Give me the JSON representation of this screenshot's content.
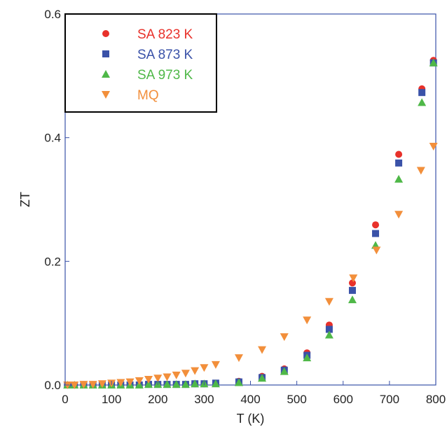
{
  "chart_data": {
    "type": "scatter",
    "xlabel": "T (K)",
    "ylabel": "ZT",
    "xlim": [
      0,
      800
    ],
    "ylim": [
      0,
      0.6
    ],
    "xticks": [
      0,
      100,
      200,
      300,
      400,
      500,
      600,
      700,
      800
    ],
    "yticks": [
      0.0,
      0.2,
      0.4,
      0.6
    ],
    "xtick_labels": [
      "0",
      "100",
      "200",
      "300",
      "400",
      "500",
      "600",
      "700",
      "800"
    ],
    "ytick_labels": [
      "0.0",
      "0.2",
      "0.4",
      "0.6"
    ],
    "grid": false,
    "legend_position": "top-left",
    "series": [
      {
        "name": "SA 823 K",
        "marker": "circle",
        "color": "#e8312a",
        "x": [
          5,
          20,
          40,
          60,
          80,
          100,
          120,
          140,
          160,
          180,
          200,
          220,
          240,
          260,
          280,
          300,
          325,
          375,
          425,
          473,
          522,
          570,
          620,
          670,
          720,
          770,
          795
        ],
        "y": [
          0.0,
          0.0,
          0.0,
          0.0,
          0.0,
          0.0,
          0.0,
          0.0,
          0.0,
          0.001,
          0.001,
          0.001,
          0.001,
          0.001,
          0.002,
          0.002,
          0.003,
          0.006,
          0.014,
          0.026,
          0.052,
          0.097,
          0.165,
          0.259,
          0.373,
          0.479,
          0.525
        ]
      },
      {
        "name": "SA 873 K",
        "marker": "square",
        "color": "#3a52a8",
        "x": [
          5,
          20,
          40,
          60,
          80,
          100,
          120,
          140,
          160,
          180,
          200,
          220,
          240,
          260,
          280,
          300,
          325,
          375,
          425,
          473,
          522,
          570,
          620,
          670,
          720,
          770,
          795
        ],
        "y": [
          0.0,
          0.0,
          0.0,
          0.0,
          0.0,
          0.0,
          0.0,
          0.0,
          0.0,
          0.001,
          0.001,
          0.001,
          0.001,
          0.001,
          0.002,
          0.002,
          0.003,
          0.005,
          0.012,
          0.024,
          0.048,
          0.09,
          0.153,
          0.245,
          0.359,
          0.473,
          0.521
        ]
      },
      {
        "name": "SA 973 K",
        "marker": "triangle-up",
        "color": "#4fb848",
        "x": [
          5,
          20,
          40,
          60,
          80,
          100,
          120,
          140,
          160,
          180,
          200,
          220,
          240,
          260,
          280,
          300,
          325,
          375,
          425,
          473,
          522,
          570,
          620,
          670,
          720,
          770,
          795
        ],
        "y": [
          0.0,
          0.0,
          0.0,
          0.0,
          0.0,
          0.0,
          0.0,
          0.0,
          0.0,
          0.001,
          0.001,
          0.001,
          0.001,
          0.001,
          0.002,
          0.002,
          0.002,
          0.004,
          0.011,
          0.022,
          0.044,
          0.081,
          0.138,
          0.226,
          0.333,
          0.457,
          0.521
        ]
      },
      {
        "name": "MQ",
        "marker": "triangle-down",
        "color": "#f28f3b",
        "x": [
          5,
          20,
          40,
          60,
          80,
          100,
          120,
          140,
          160,
          180,
          200,
          220,
          240,
          260,
          280,
          300,
          325,
          375,
          425,
          473,
          522,
          570,
          622,
          672,
          720,
          768,
          795
        ],
        "y": [
          0.0,
          0.0,
          0.001,
          0.001,
          0.002,
          0.003,
          0.004,
          0.005,
          0.007,
          0.009,
          0.011,
          0.013,
          0.016,
          0.019,
          0.023,
          0.028,
          0.033,
          0.044,
          0.057,
          0.078,
          0.105,
          0.135,
          0.173,
          0.218,
          0.276,
          0.347,
          0.386
        ]
      }
    ]
  }
}
